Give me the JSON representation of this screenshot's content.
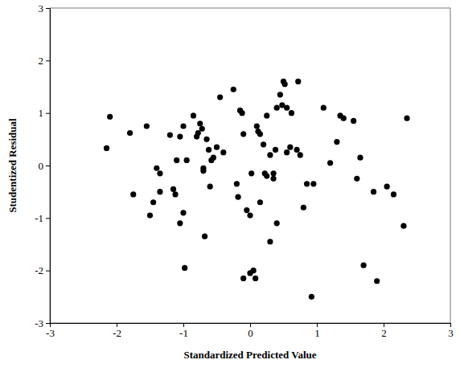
{
  "chart_data": {
    "type": "scatter",
    "x_label": "Standardized Predicted Value",
    "y_label": "Studentized Residual",
    "color": "#000000",
    "marker": "circle",
    "xlim": [
      -3,
      3
    ],
    "ylim": [
      -3,
      3
    ],
    "xticks": [
      -3,
      -2,
      -1,
      0,
      1,
      2,
      3
    ],
    "yticks": [
      -3,
      -2,
      -1,
      0,
      1,
      2,
      3
    ],
    "x": [
      -2.1,
      -2.15,
      -1.8,
      -1.75,
      -1.55,
      -1.5,
      -1.45,
      -1.4,
      -1.35,
      -1.35,
      -1.2,
      -1.15,
      -1.12,
      -1.1,
      -1.05,
      -1.05,
      -1.0,
      -1.0,
      -0.98,
      -0.95,
      -0.85,
      -0.8,
      -0.78,
      -0.75,
      -0.72,
      -0.7,
      -0.7,
      -0.68,
      -0.65,
      -0.62,
      -0.6,
      -0.58,
      -0.55,
      -0.5,
      -0.45,
      -0.4,
      -0.25,
      -0.2,
      -0.18,
      -0.15,
      -0.12,
      -0.1,
      -0.1,
      -0.05,
      0.0,
      0.0,
      0.02,
      0.05,
      0.08,
      0.1,
      0.12,
      0.15,
      0.15,
      0.2,
      0.22,
      0.25,
      0.25,
      0.3,
      0.3,
      0.35,
      0.35,
      0.38,
      0.4,
      0.4,
      0.45,
      0.48,
      0.5,
      0.52,
      0.55,
      0.55,
      0.6,
      0.62,
      0.7,
      0.72,
      0.75,
      0.8,
      0.85,
      0.92,
      0.95,
      1.1,
      1.2,
      1.3,
      1.35,
      1.4,
      1.55,
      1.6,
      1.65,
      1.7,
      1.85,
      1.9,
      2.05,
      2.15,
      2.3,
      2.35
    ],
    "values": [
      0.93,
      0.33,
      0.62,
      -0.55,
      0.75,
      -0.95,
      -0.7,
      -0.05,
      -0.15,
      -0.5,
      0.58,
      -0.45,
      -0.55,
      0.1,
      0.55,
      -1.1,
      0.75,
      -0.9,
      -1.95,
      0.1,
      0.95,
      0.55,
      0.62,
      0.8,
      0.7,
      -0.05,
      -0.1,
      -1.35,
      0.5,
      0.3,
      -0.4,
      0.1,
      0.15,
      0.35,
      1.3,
      0.25,
      1.45,
      -0.35,
      -0.6,
      1.05,
      1.0,
      0.6,
      -2.15,
      -0.85,
      -0.95,
      -2.05,
      -0.15,
      -2.0,
      -2.15,
      0.75,
      0.65,
      0.6,
      -0.7,
      0.4,
      -0.15,
      0.95,
      -0.2,
      0.2,
      -1.45,
      -0.15,
      -0.25,
      0.3,
      1.1,
      -1.1,
      1.35,
      1.15,
      1.6,
      1.55,
      1.1,
      0.25,
      0.35,
      1.0,
      0.3,
      1.6,
      0.2,
      -0.8,
      -0.35,
      -2.5,
      -0.35,
      1.1,
      0.05,
      0.45,
      0.95,
      0.9,
      0.85,
      -0.25,
      0.15,
      -1.9,
      -0.5,
      -2.2,
      -0.4,
      -0.55,
      -1.15,
      0.9
    ]
  }
}
